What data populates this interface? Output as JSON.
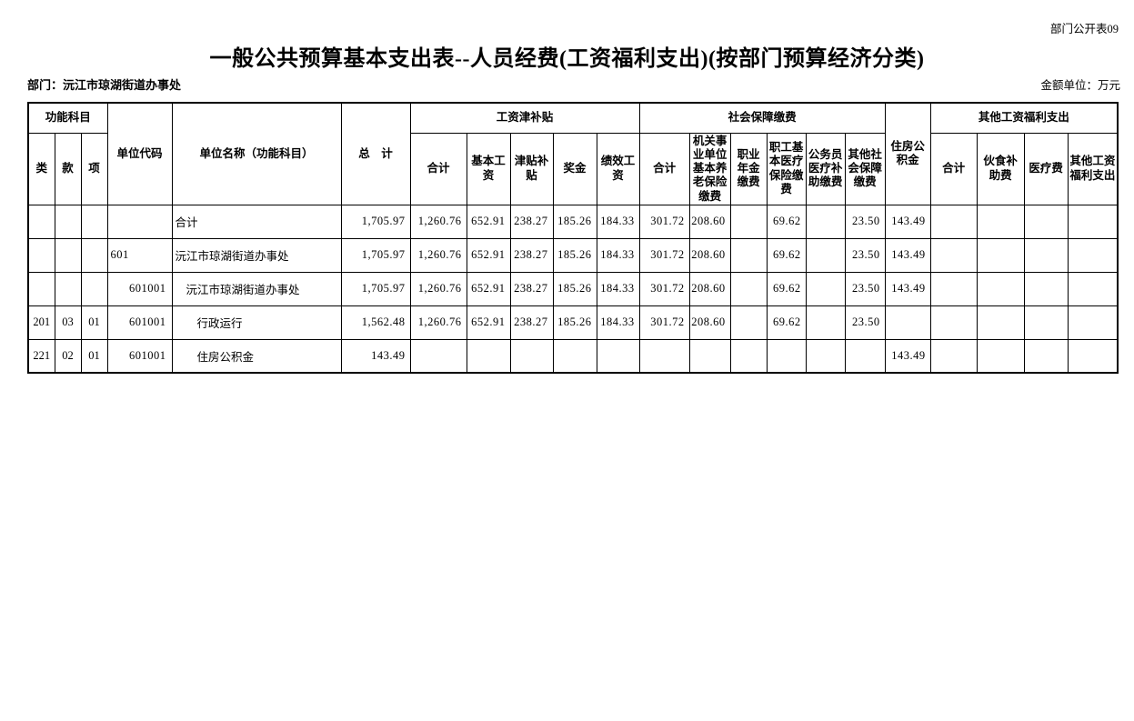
{
  "page": {
    "doc_label": "部门公开表09",
    "title": "一般公共预算基本支出表--人员经费(工资福利支出)(按部门预算经济分类)",
    "department": "部门：沅江市琼湖街道办事处",
    "unit": "金额单位：万元"
  },
  "table": {
    "header": {
      "func_group": "功能科目",
      "lei": "类",
      "kuan": "款",
      "xiang": "项",
      "unit_code": "单位代码",
      "unit_name": "单位名称（功能科目）",
      "grand_total": "总　计",
      "wage_group": "工资津补贴",
      "wage_total": "合计",
      "basic_wage": "基本工资",
      "allowance": "津贴补贴",
      "bonus": "奖金",
      "performance_wage": "绩效工资",
      "social_group": "社会保障缴费",
      "social_total": "合计",
      "pension": "机关事业单位基本养老保险缴费",
      "annuity": "职业年金缴费",
      "staff_medical": "职工基本医疗保险缴费",
      "civil_servant_medical": "公务员医疗补助缴费",
      "other_social": "其他社会保障缴费",
      "housing_fund": "住房公积金",
      "other_group": "其他工资福利支出",
      "other_total": "合计",
      "meal_subsidy": "伙食补助费",
      "medical_fee": "医疗费",
      "other_welfare": "其他工资福利支出"
    },
    "value_columns": [
      "总计",
      "工资津补贴合计",
      "基本工资",
      "津贴补贴",
      "奖金",
      "绩效工资",
      "社会保障缴费合计",
      "机关事业单位基本养老保险缴费",
      "职业年金缴费",
      "职工基本医疗保险缴费",
      "公务员医疗补助缴费",
      "其他社会保障缴费",
      "住房公积金",
      "其他工资福利支出合计",
      "伙食补助费",
      "医疗费",
      "其他工资福利支出"
    ],
    "rows": [
      {
        "lei": "",
        "kuan": "",
        "xiang": "",
        "code": "",
        "code_align": "left",
        "name": "合计",
        "indent": 0,
        "values": [
          "1,705.97",
          "1,260.76",
          "652.91",
          "238.27",
          "185.26",
          "184.33",
          "301.72",
          "208.60",
          "",
          "69.62",
          "",
          "23.50",
          "143.49",
          "",
          "",
          "",
          ""
        ]
      },
      {
        "lei": "",
        "kuan": "",
        "xiang": "",
        "code": "601",
        "code_align": "left",
        "name": "沅江市琼湖街道办事处",
        "indent": 0,
        "values": [
          "1,705.97",
          "1,260.76",
          "652.91",
          "238.27",
          "185.26",
          "184.33",
          "301.72",
          "208.60",
          "",
          "69.62",
          "",
          "23.50",
          "143.49",
          "",
          "",
          "",
          ""
        ]
      },
      {
        "lei": "",
        "kuan": "",
        "xiang": "",
        "code": "601001",
        "code_align": "right",
        "name": "沅江市琼湖街道办事处",
        "indent": 1,
        "values": [
          "1,705.97",
          "1,260.76",
          "652.91",
          "238.27",
          "185.26",
          "184.33",
          "301.72",
          "208.60",
          "",
          "69.62",
          "",
          "23.50",
          "143.49",
          "",
          "",
          "",
          ""
        ]
      },
      {
        "lei": "201",
        "kuan": "03",
        "xiang": "01",
        "code": "601001",
        "code_align": "right",
        "name": "行政运行",
        "indent": 2,
        "values": [
          "1,562.48",
          "1,260.76",
          "652.91",
          "238.27",
          "185.26",
          "184.33",
          "301.72",
          "208.60",
          "",
          "69.62",
          "",
          "23.50",
          "",
          "",
          "",
          "",
          ""
        ]
      },
      {
        "lei": "221",
        "kuan": "02",
        "xiang": "01",
        "code": "601001",
        "code_align": "right",
        "name": "住房公积金",
        "indent": 2,
        "values": [
          "143.49",
          "",
          "",
          "",
          "",
          "",
          "",
          "",
          "",
          "",
          "",
          "",
          "143.49",
          "",
          "",
          "",
          ""
        ]
      }
    ]
  }
}
